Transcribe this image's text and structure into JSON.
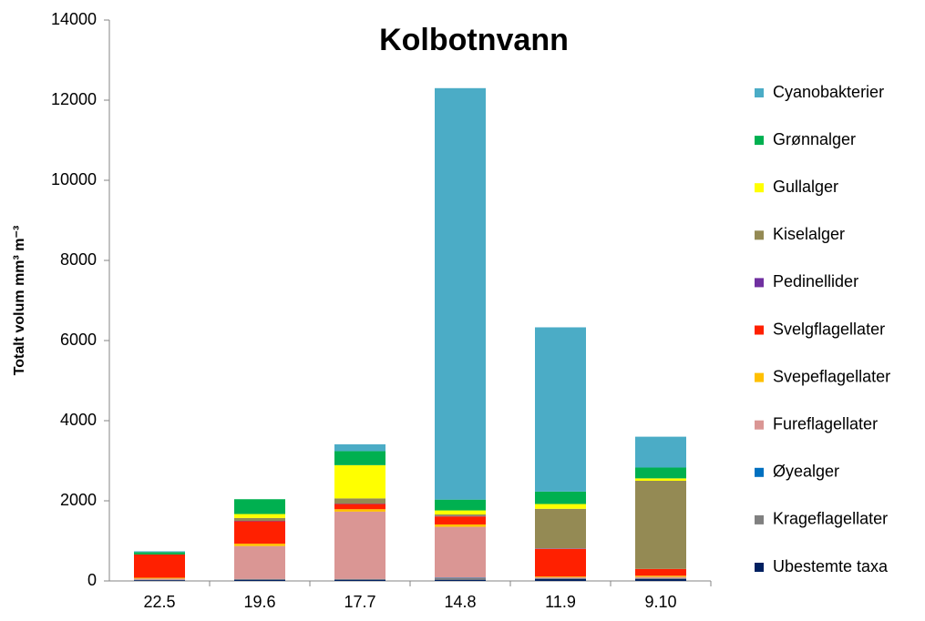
{
  "chart_data": {
    "type": "stacked_bar",
    "title": "Kolbotnvann",
    "y_label": "Totalt volum mm³ m⁻³",
    "categories": [
      "22.5",
      "19.6",
      "17.7",
      "14.8",
      "11.9",
      "9.10"
    ],
    "ylim": [
      0,
      14000
    ],
    "yticks": [
      0,
      2000,
      4000,
      6000,
      8000,
      10000,
      12000,
      14000
    ],
    "grid": false,
    "legend": "right",
    "series": [
      {
        "name": "Ubestemte taxa",
        "color": "#002060",
        "values": [
          20,
          30,
          30,
          30,
          50,
          50
        ]
      },
      {
        "name": "Krageflagellater",
        "color": "#808080",
        "values": [
          10,
          20,
          20,
          40,
          20,
          20
        ]
      },
      {
        "name": "Øyealger",
        "color": "#0070c0",
        "values": [
          0,
          0,
          0,
          10,
          0,
          0
        ]
      },
      {
        "name": "Fureflagellater",
        "color": "#da9694",
        "values": [
          30,
          820,
          1680,
          1270,
          20,
          30
        ]
      },
      {
        "name": "Svepeflagellater",
        "color": "#ffc000",
        "values": [
          20,
          60,
          60,
          60,
          20,
          30
        ]
      },
      {
        "name": "Svelgflagellater",
        "color": "#ff2000",
        "values": [
          580,
          560,
          130,
          200,
          690,
          170
        ]
      },
      {
        "name": "Pedinellider",
        "color": "#7030a0",
        "values": [
          0,
          10,
          10,
          10,
          10,
          0
        ]
      },
      {
        "name": "Kiselalger",
        "color": "#948a54",
        "values": [
          0,
          70,
          130,
          40,
          990,
          2200
        ]
      },
      {
        "name": "Gullalger",
        "color": "#ffff00",
        "values": [
          0,
          100,
          830,
          100,
          120,
          60
        ]
      },
      {
        "name": "Grønnalger",
        "color": "#00b050",
        "values": [
          60,
          370,
          350,
          270,
          310,
          270
        ]
      },
      {
        "name": "Cyanobakterier",
        "color": "#4bacc6",
        "values": [
          20,
          0,
          170,
          10270,
          4100,
          770
        ]
      }
    ]
  }
}
